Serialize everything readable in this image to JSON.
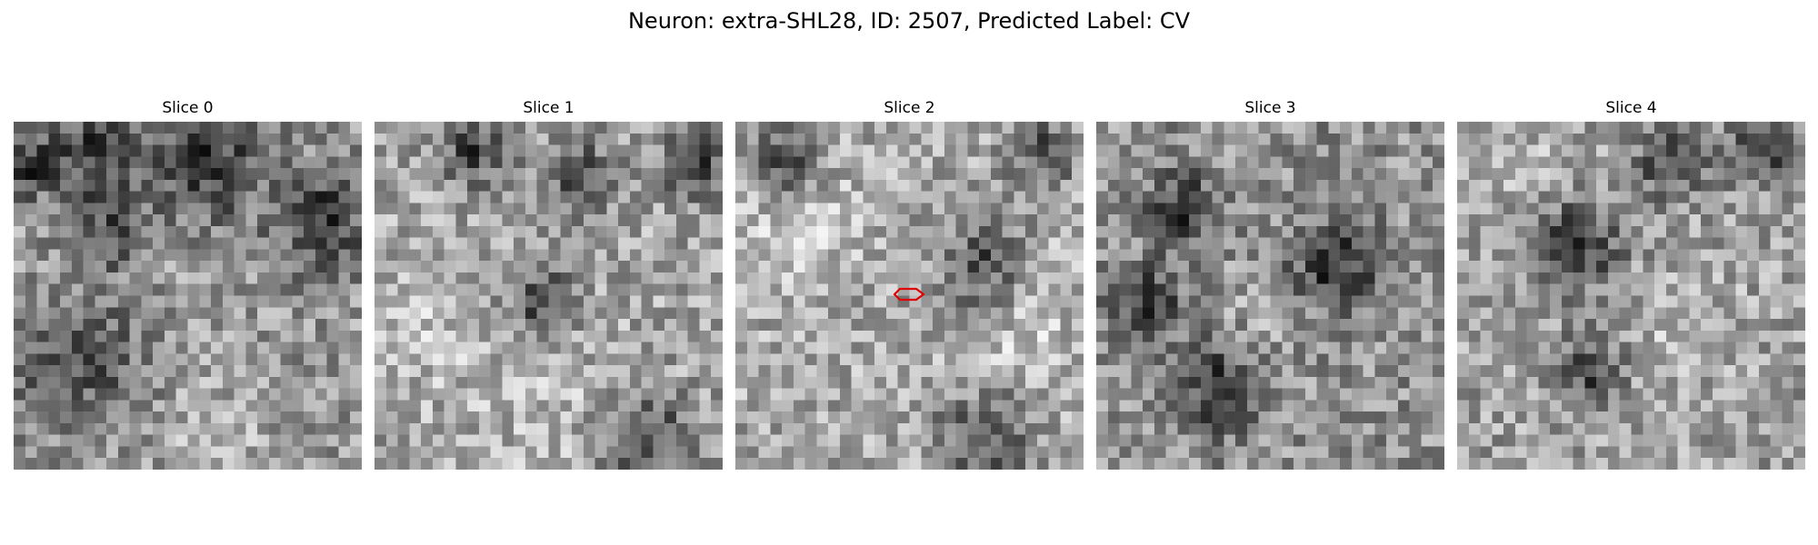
{
  "figure": {
    "title": "Neuron: extra-SHL28, ID: 2507, Predicted Label: CV"
  },
  "colormap": "gray",
  "marker_color": "#e00000",
  "slices": [
    {
      "title": "Slice 0"
    },
    {
      "title": "Slice 1"
    },
    {
      "title": "Slice 2"
    },
    {
      "title": "Slice 3"
    },
    {
      "title": "Slice 4"
    }
  ]
}
